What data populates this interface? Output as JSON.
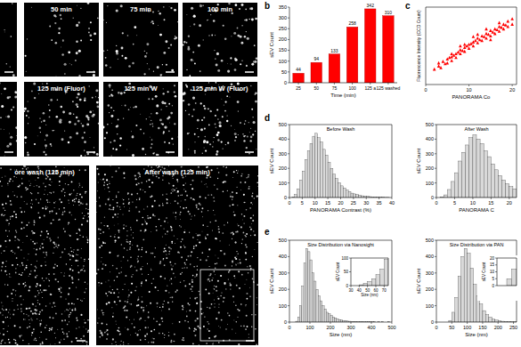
{
  "panel_labels": [
    "b",
    "c",
    "d",
    "e"
  ],
  "images": {
    "top": [
      null,
      "50 min",
      "75 min",
      "100 min"
    ],
    "middle": [
      null,
      "125 min (Fluor)",
      "125 min W",
      "125 min W (Fluor)"
    ],
    "bottom": [
      "ore wash (125 min)",
      "After wash (125 min)"
    ]
  },
  "chart_data": [
    {
      "type": "bar",
      "categories": [
        "25",
        "50",
        "75",
        "100",
        "125 a",
        "125 washed"
      ],
      "values": [
        44,
        94,
        133,
        258,
        342,
        310
      ],
      "color": "#ff0000",
      "data_labels": true,
      "x_label": "Time (min)",
      "y_label": "sEV Count",
      "ylim": [
        0,
        350
      ],
      "yticks": [
        0,
        50,
        100,
        150,
        200,
        250,
        300,
        350
      ]
    },
    {
      "type": "scatter",
      "marker": "triangle",
      "color": "#ff0000",
      "tick_labels": "x",
      "x_label": "PANORAMA Co",
      "y_label": "Fluorescence Intensity (CCD Count)",
      "xlim": [
        0,
        21
      ],
      "xticks": [
        0,
        10,
        20
      ],
      "ylim": [
        0,
        100
      ],
      "x": [
        2,
        3,
        3.5,
        4,
        4.5,
        5,
        5,
        5.5,
        6,
        6,
        6.5,
        7,
        7,
        7.5,
        8,
        8,
        8.5,
        9,
        9,
        9.5,
        10,
        10,
        10.5,
        11,
        11,
        11.5,
        12,
        12,
        12.5,
        13,
        13,
        13.5,
        14,
        14,
        14.5,
        15,
        15,
        15.5,
        16,
        16,
        16.5,
        17,
        17,
        17.5,
        18,
        18,
        18.5,
        19,
        19,
        20,
        3,
        6,
        9,
        12,
        15,
        8,
        11,
        14,
        17,
        20
      ],
      "values": [
        20,
        24,
        22,
        30,
        27,
        33,
        28,
        35,
        36,
        31,
        38,
        40,
        35,
        42,
        45,
        40,
        44,
        48,
        43,
        50,
        52,
        47,
        53,
        55,
        50,
        57,
        60,
        54,
        58,
        63,
        57,
        62,
        66,
        60,
        65,
        70,
        63,
        68,
        72,
        66,
        71,
        75,
        69,
        74,
        78,
        72,
        77,
        82,
        75,
        85,
        28,
        40,
        52,
        65,
        58,
        50,
        62,
        72,
        80,
        78
      ]
    },
    {
      "type": "histogram",
      "title": "Before Wash",
      "color": "#d9d9d9",
      "x_label": "PANORAMA Contrast (%)",
      "y_label": "sEV Count",
      "xlim": [
        0,
        40
      ],
      "xticks": [
        0,
        5,
        10,
        15,
        20,
        25,
        30,
        35,
        40
      ],
      "ylim": [
        0,
        500
      ],
      "yticks": [
        0,
        100,
        200,
        300,
        400,
        500
      ],
      "bins": [
        0,
        1,
        2,
        3,
        4,
        5,
        6,
        7,
        8,
        9,
        10,
        11,
        12,
        13,
        14,
        15,
        16,
        17,
        18,
        19,
        20,
        21,
        22,
        23,
        24,
        25,
        26,
        27,
        28,
        29,
        30,
        31,
        32,
        33,
        34,
        35,
        36,
        37,
        38,
        39,
        40
      ],
      "values": [
        0,
        5,
        20,
        60,
        120,
        180,
        260,
        320,
        370,
        420,
        440,
        410,
        380,
        330,
        290,
        240,
        200,
        160,
        130,
        100,
        80,
        65,
        50,
        40,
        30,
        25,
        20,
        15,
        12,
        10,
        8,
        6,
        5,
        4,
        3,
        2,
        2,
        1,
        1,
        0
      ]
    },
    {
      "type": "histogram",
      "title": "After Wash",
      "color": "#d9d9d9",
      "x_label": "PANORAMA C",
      "y_label": "sEV Count",
      "xlim": [
        0,
        22
      ],
      "xticks": [
        0,
        5,
        10,
        15,
        20
      ],
      "ylim": [
        0,
        500
      ],
      "yticks": [
        0,
        100,
        200,
        300,
        400,
        500
      ],
      "bins": [
        0,
        1,
        2,
        3,
        4,
        5,
        6,
        7,
        8,
        9,
        10,
        11,
        12,
        13,
        14,
        15,
        16,
        17,
        18,
        19,
        20,
        21,
        22
      ],
      "values": [
        0,
        4,
        18,
        55,
        110,
        170,
        250,
        310,
        360,
        410,
        430,
        400,
        370,
        320,
        280,
        230,
        190,
        150,
        120,
        95,
        75,
        60
      ]
    },
    {
      "type": "histogram",
      "title": "Size Distribution via Nanosight",
      "color": "#d9d9d9",
      "x_label": "Size (nm)",
      "y_label": "sEV Count",
      "xlim": [
        0,
        500
      ],
      "xticks": [
        0,
        100,
        200,
        300,
        400,
        500
      ],
      "ylim": [
        0,
        500
      ],
      "yticks": [
        0,
        100,
        200,
        300,
        400,
        500
      ],
      "bins": [
        0,
        10,
        20,
        30,
        40,
        50,
        60,
        70,
        80,
        90,
        100,
        110,
        120,
        130,
        140,
        150,
        160,
        170,
        180,
        190,
        200,
        210,
        220,
        230,
        240,
        250,
        260,
        270,
        280,
        290,
        300,
        310,
        320,
        330,
        340,
        350,
        360,
        370,
        380,
        390,
        400,
        410,
        420,
        430,
        440,
        450,
        460,
        470,
        480,
        490,
        500
      ],
      "values": [
        0,
        0,
        0,
        5,
        30,
        100,
        220,
        360,
        450,
        430,
        380,
        300,
        250,
        200,
        160,
        130,
        100,
        80,
        60,
        50,
        40,
        30,
        25,
        20,
        15,
        12,
        10,
        8,
        6,
        5,
        4,
        3,
        3,
        2,
        2,
        2,
        1,
        1,
        1,
        1,
        1,
        1,
        0,
        1,
        0,
        1,
        0,
        0,
        1,
        0
      ]
    },
    {
      "type": "histogram",
      "color": "#d9d9d9",
      "x_label": "Size (nm)",
      "y_label": "sEV Count",
      "xlim": [
        30,
        75
      ],
      "xticks": [
        30,
        40,
        50,
        60,
        70
      ],
      "ylim": [
        0,
        100
      ],
      "yticks": [
        0,
        50,
        100
      ],
      "bins": [
        40,
        45,
        50,
        55,
        60,
        65,
        70,
        75
      ],
      "values": [
        3,
        8,
        15,
        25,
        40,
        60,
        95
      ]
    },
    {
      "type": "histogram",
      "title": "Size Distribution via PAN",
      "color": "#d9d9d9",
      "x_label": "Size (nm)",
      "y_label": "sEV Count",
      "xlim": [
        0,
        260
      ],
      "xticks": [
        0,
        50,
        100,
        150,
        200,
        250
      ],
      "ylim": [
        0,
        500
      ],
      "yticks": [
        0,
        100,
        200,
        300,
        400,
        500
      ],
      "bins": [
        0,
        10,
        20,
        30,
        40,
        50,
        60,
        70,
        80,
        90,
        100,
        110,
        120,
        130,
        140,
        150,
        160,
        170,
        180,
        190,
        200,
        210,
        220,
        230,
        240,
        250,
        260
      ],
      "values": [
        0,
        0,
        0,
        0,
        10,
        60,
        150,
        280,
        400,
        450,
        420,
        330,
        230,
        160,
        110,
        70,
        45,
        30,
        18,
        12,
        8,
        5,
        3,
        2,
        1,
        1
      ]
    },
    {
      "type": "histogram",
      "color": "#d9d9d9",
      "tick_labels": "y",
      "y_label": "sEV Count",
      "xlim": [
        30,
        50
      ],
      "ylim": [
        0,
        20
      ],
      "yticks": [
        0,
        5,
        10,
        15,
        20
      ],
      "bins": [
        40,
        45,
        50
      ],
      "values": [
        5,
        12
      ]
    }
  ]
}
